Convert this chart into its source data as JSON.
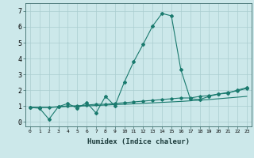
{
  "xlabel": "Humidex (Indice chaleur)",
  "background_color": "#cce8ea",
  "grid_color": "#aacdd0",
  "line_color": "#1a7a6e",
  "xlim": [
    -0.5,
    23.5
  ],
  "ylim": [
    -0.3,
    7.5
  ],
  "yticks": [
    0,
    1,
    2,
    3,
    4,
    5,
    6,
    7
  ],
  "xticks": [
    0,
    1,
    2,
    3,
    4,
    5,
    6,
    7,
    8,
    9,
    10,
    11,
    12,
    13,
    14,
    15,
    16,
    17,
    18,
    19,
    20,
    21,
    22,
    23
  ],
  "xtick_labels": [
    "0",
    "1",
    "2",
    "3",
    "4",
    "5",
    "6",
    "7",
    "8",
    "9",
    "10",
    "11",
    "12",
    "13",
    "14",
    "15",
    "16",
    "17",
    "18",
    "19",
    "20",
    "21",
    "22",
    "23"
  ],
  "line1_x": [
    0,
    1,
    2,
    3,
    4,
    5,
    6,
    7,
    8,
    9,
    10,
    11,
    12,
    13,
    14,
    15,
    16,
    17,
    18,
    19,
    20,
    21,
    22,
    23
  ],
  "line1_y": [
    0.9,
    0.85,
    0.15,
    0.95,
    1.15,
    0.85,
    1.2,
    0.55,
    1.6,
    1.0,
    2.5,
    3.8,
    4.9,
    6.05,
    6.85,
    6.7,
    3.3,
    1.45,
    1.4,
    1.6,
    1.75,
    1.8,
    2.0,
    2.15
  ],
  "line2_x": [
    0,
    1,
    2,
    3,
    4,
    5,
    6,
    7,
    8,
    9,
    10,
    11,
    12,
    13,
    14,
    15,
    16,
    17,
    18,
    19,
    20,
    21,
    22,
    23
  ],
  "line2_y": [
    0.9,
    0.9,
    0.9,
    0.95,
    1.0,
    1.0,
    1.05,
    1.1,
    1.1,
    1.15,
    1.2,
    1.25,
    1.3,
    1.35,
    1.4,
    1.45,
    1.5,
    1.5,
    1.6,
    1.65,
    1.75,
    1.85,
    1.95,
    2.1
  ],
  "line3_x": [
    0,
    1,
    2,
    3,
    4,
    5,
    6,
    7,
    8,
    9,
    10,
    11,
    12,
    13,
    14,
    15,
    16,
    17,
    18,
    19,
    20,
    21,
    22,
    23
  ],
  "line3_y": [
    0.9,
    0.9,
    0.9,
    0.93,
    0.96,
    0.98,
    1.0,
    1.02,
    1.05,
    1.08,
    1.1,
    1.13,
    1.16,
    1.19,
    1.22,
    1.25,
    1.28,
    1.32,
    1.36,
    1.4,
    1.45,
    1.5,
    1.55,
    1.6
  ]
}
